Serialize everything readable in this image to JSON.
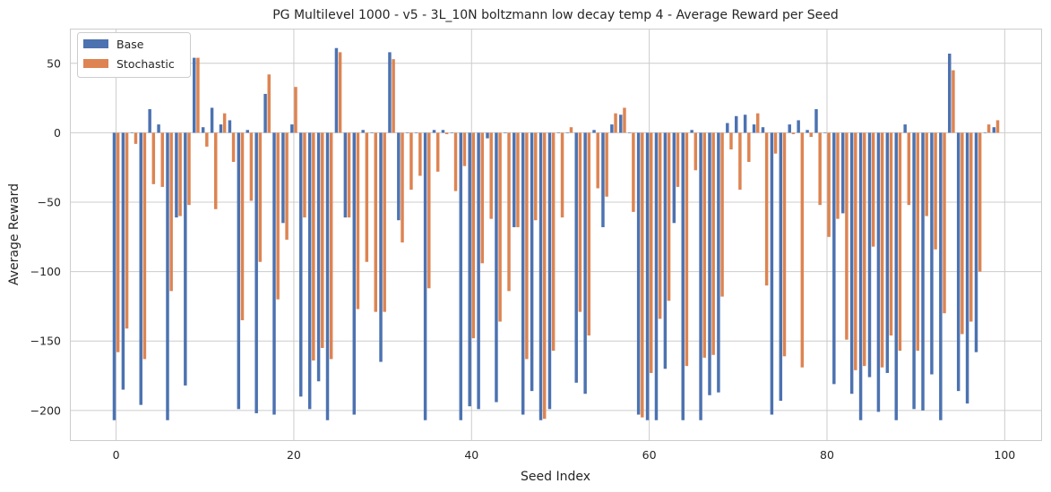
{
  "chart_data": {
    "type": "bar",
    "title": "PG Multilevel 1000 - v5 - 3L_10N boltzmann low decay temp 4 - Average Reward per Seed",
    "xlabel": "Seed Index",
    "ylabel": "Average Reward",
    "xlim": [
      -5.2,
      104.2
    ],
    "ylim": [
      -222,
      75
    ],
    "xticks": [
      0,
      20,
      40,
      60,
      80,
      100
    ],
    "yticks": [
      -200,
      -150,
      -100,
      -50,
      0,
      50
    ],
    "grid": true,
    "legend_position": "top-left",
    "series": [
      {
        "name": "Base",
        "color": "#4c72b0",
        "values": [
          -207,
          -185,
          0,
          -196,
          17,
          6,
          -207,
          -61,
          -182,
          54,
          4,
          18,
          6,
          9,
          -199,
          2,
          -202,
          28,
          -203,
          -65,
          6,
          -190,
          -199,
          -179,
          -207,
          61,
          -61,
          -203,
          2,
          0,
          -165,
          58,
          -63,
          0,
          0,
          -207,
          2,
          2,
          0,
          -207,
          -197,
          -199,
          -4,
          -194,
          0,
          -68,
          -203,
          -186,
          -207,
          -199,
          0,
          0,
          -180,
          -188,
          2,
          -68,
          6,
          13,
          0,
          -203,
          -207,
          -207,
          -170,
          -65,
          -207,
          2,
          -207,
          -189,
          -187,
          7,
          12,
          13,
          6,
          4,
          -203,
          -193,
          6,
          9,
          2,
          17,
          0,
          -181,
          -58,
          -188,
          -207,
          -176,
          -201,
          -173,
          -207,
          6,
          -199,
          -200,
          -174,
          -207,
          57,
          -186,
          -195,
          -158,
          0,
          4
        ]
      },
      {
        "name": "Stochastic",
        "color": "#dd8452",
        "values": [
          -158,
          -141,
          -8,
          -163,
          -37,
          -39,
          -114,
          -60,
          -52,
          54,
          -10,
          -55,
          14,
          -21,
          -135,
          -49,
          -93,
          42,
          -120,
          -77,
          33,
          -61,
          -164,
          -155,
          -163,
          58,
          -61,
          -127,
          -93,
          -129,
          -129,
          53,
          -79,
          -41,
          -31,
          -112,
          -28,
          -1,
          -42,
          -24,
          -148,
          -94,
          -62,
          -136,
          -114,
          -68,
          -163,
          -63,
          -206,
          -157,
          -61,
          4,
          -129,
          -146,
          -40,
          -46,
          14,
          18,
          -57,
          -205,
          -173,
          -134,
          -121,
          -39,
          -168,
          -27,
          -162,
          -160,
          -118,
          -12,
          -41,
          -21,
          14,
          -110,
          -15,
          -161,
          -1,
          -169,
          -3,
          -52,
          -75,
          -62,
          -149,
          -171,
          -168,
          -82,
          -169,
          -146,
          -157,
          -52,
          -157,
          -60,
          -84,
          -130,
          45,
          -145,
          -136,
          -100,
          6,
          9
        ]
      }
    ]
  }
}
